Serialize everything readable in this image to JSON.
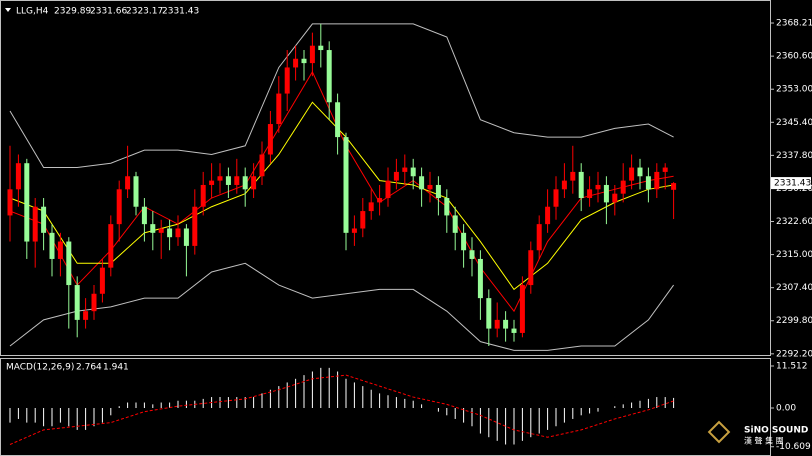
{
  "chart_data": [
    {
      "type": "candlestick",
      "title": "LLG,H4",
      "up_color": "#ff0000",
      "down_color": "#98fb98",
      "candles": [
        [
          2324,
          2340,
          2318,
          2330
        ],
        [
          2330,
          2338,
          2326,
          2336
        ],
        [
          2336,
          2337,
          2314,
          2318
        ],
        [
          2318,
          2328,
          2312,
          2326
        ],
        [
          2326,
          2328,
          2316,
          2320
        ],
        [
          2320,
          2322,
          2310,
          2314
        ],
        [
          2314,
          2320,
          2310,
          2318
        ],
        [
          2318,
          2319,
          2298,
          2308
        ],
        [
          2308,
          2310,
          2296,
          2300
        ],
        [
          2300,
          2305,
          2298,
          2302
        ],
        [
          2302,
          2308,
          2300,
          2306
        ],
        [
          2306,
          2314,
          2304,
          2312
        ],
        [
          2312,
          2324,
          2310,
          2322
        ],
        [
          2322,
          2332,
          2318,
          2330
        ],
        [
          2330,
          2340,
          2328,
          2333
        ],
        [
          2333,
          2334,
          2324,
          2326
        ],
        [
          2326,
          2328,
          2318,
          2322
        ],
        [
          2322,
          2325,
          2316,
          2320
        ],
        [
          2320,
          2323,
          2314,
          2321
        ],
        [
          2321,
          2323,
          2316,
          2319
        ],
        [
          2319,
          2324,
          2317,
          2321
        ],
        [
          2321,
          2322,
          2310,
          2317
        ],
        [
          2317,
          2330,
          2315,
          2326
        ],
        [
          2326,
          2334,
          2324,
          2331
        ],
        [
          2331,
          2336,
          2328,
          2332
        ],
        [
          2332,
          2336,
          2329,
          2333
        ],
        [
          2333,
          2335,
          2328,
          2331
        ],
        [
          2331,
          2337,
          2329,
          2333
        ],
        [
          2333,
          2335,
          2326,
          2330
        ],
        [
          2330,
          2336,
          2328,
          2333
        ],
        [
          2333,
          2341,
          2331,
          2338
        ],
        [
          2338,
          2348,
          2336,
          2345
        ],
        [
          2345,
          2356,
          2343,
          2352
        ],
        [
          2352,
          2362,
          2348,
          2358
        ],
        [
          2358,
          2363,
          2355,
          2360
        ],
        [
          2360,
          2362,
          2355,
          2359
        ],
        [
          2359,
          2366,
          2356,
          2363
        ],
        [
          2363,
          2368,
          2358,
          2362
        ],
        [
          2362,
          2364,
          2346,
          2350
        ],
        [
          2350,
          2352,
          2338,
          2342
        ],
        [
          2342,
          2343,
          2316,
          2320
        ],
        [
          2320,
          2324,
          2317,
          2321
        ],
        [
          2321,
          2328,
          2319,
          2325
        ],
        [
          2325,
          2330,
          2323,
          2327
        ],
        [
          2327,
          2331,
          2324,
          2328
        ],
        [
          2328,
          2335,
          2326,
          2332
        ],
        [
          2332,
          2337,
          2330,
          2334
        ],
        [
          2334,
          2338,
          2331,
          2335
        ],
        [
          2335,
          2337,
          2330,
          2333
        ],
        [
          2333,
          2335,
          2326,
          2330
        ],
        [
          2330,
          2334,
          2327,
          2331
        ],
        [
          2331,
          2333,
          2324,
          2328
        ],
        [
          2328,
          2330,
          2320,
          2324
        ],
        [
          2324,
          2326,
          2316,
          2320
        ],
        [
          2320,
          2322,
          2312,
          2316
        ],
        [
          2316,
          2319,
          2310,
          2314
        ],
        [
          2314,
          2316,
          2300,
          2305
        ],
        [
          2305,
          2307,
          2294,
          2298
        ],
        [
          2298,
          2304,
          2296,
          2300
        ],
        [
          2300,
          2302,
          2295,
          2298
        ],
        [
          2298,
          2300,
          2295,
          2297
        ],
        [
          2297,
          2310,
          2296,
          2308
        ],
        [
          2308,
          2318,
          2306,
          2316
        ],
        [
          2316,
          2324,
          2314,
          2322
        ],
        [
          2322,
          2330,
          2320,
          2326
        ],
        [
          2326,
          2333,
          2323,
          2330
        ],
        [
          2330,
          2336,
          2328,
          2332
        ],
        [
          2332,
          2340,
          2329,
          2334
        ],
        [
          2334,
          2336,
          2325,
          2328
        ],
        [
          2328,
          2333,
          2326,
          2330
        ],
        [
          2330,
          2334,
          2327,
          2331
        ],
        [
          2331,
          2333,
          2322,
          2327
        ],
        [
          2327,
          2331,
          2324,
          2329
        ],
        [
          2329,
          2336,
          2327,
          2332
        ],
        [
          2332,
          2338,
          2330,
          2335
        ],
        [
          2335,
          2337,
          2330,
          2333
        ],
        [
          2333,
          2335,
          2327,
          2330
        ],
        [
          2330,
          2336,
          2328,
          2334
        ],
        [
          2334,
          2336,
          2330,
          2335
        ],
        [
          2329.89,
          2331.66,
          2323.17,
          2331.43
        ]
      ],
      "overlays": [
        {
          "color": "#c0c0c0",
          "x": [
            0,
            4,
            8,
            12,
            16,
            20,
            24,
            28,
            32,
            36,
            40,
            44,
            48,
            52,
            56,
            60,
            64,
            68,
            72,
            76,
            79
          ],
          "values": [
            2348,
            2335,
            2335,
            2336,
            2339,
            2339,
            2338,
            2340,
            2358,
            2368,
            2368,
            2368,
            2368,
            2365,
            2346,
            2343,
            2342,
            2342,
            2344,
            2345,
            2342
          ]
        },
        {
          "color": "#c0c0c0",
          "x": [
            0,
            4,
            8,
            12,
            16,
            20,
            24,
            28,
            32,
            36,
            40,
            44,
            48,
            52,
            56,
            60,
            64,
            68,
            72,
            76,
            79
          ],
          "values": [
            2294,
            2300,
            2302,
            2303,
            2305,
            2305,
            2311,
            2313,
            2308,
            2305,
            2306,
            2307,
            2307,
            2302,
            2295,
            2293,
            2293,
            2294,
            2294,
            2300,
            2308
          ]
        },
        {
          "color": "#ff0000",
          "x": [
            0,
            4,
            8,
            12,
            16,
            20,
            24,
            28,
            32,
            36,
            40,
            44,
            48,
            52,
            56,
            60,
            64,
            68,
            72,
            76,
            79
          ],
          "values": [
            2325,
            2322,
            2308,
            2316,
            2326,
            2322,
            2328,
            2331,
            2344,
            2357,
            2340,
            2327,
            2332,
            2326,
            2312,
            2302,
            2318,
            2328,
            2330,
            2332,
            2333
          ]
        },
        {
          "color": "#ffff00",
          "x": [
            0,
            4,
            8,
            12,
            16,
            20,
            24,
            28,
            32,
            36,
            40,
            44,
            48,
            52,
            56,
            60,
            64,
            68,
            72,
            76,
            79
          ],
          "values": [
            2328,
            2325,
            2313,
            2313,
            2320,
            2322,
            2326,
            2329,
            2338,
            2350,
            2342,
            2332,
            2331,
            2328,
            2318,
            2307,
            2313,
            2323,
            2327,
            2330,
            2331
          ]
        }
      ],
      "ylim": [
        2291.7,
        2373.5
      ],
      "yticks": [
        {
          "value": 2368.21,
          "label": "2368.21"
        },
        {
          "value": 2360.6,
          "label": "2360.60"
        },
        {
          "value": 2353,
          "label": "2353.00"
        },
        {
          "value": 2345.4,
          "label": "2345.40"
        },
        {
          "value": 2337.8,
          "label": "2337.80"
        },
        {
          "value": 2330.2,
          "label": "2330.20"
        },
        {
          "value": 2322.6,
          "label": "2322.60"
        },
        {
          "value": 2315,
          "label": "2315.00"
        },
        {
          "value": 2307.4,
          "label": "2307.40"
        },
        {
          "value": 2299.8,
          "label": "2299.80"
        },
        {
          "value": 2292.2,
          "label": "2292.20"
        }
      ]
    },
    {
      "type": "macd",
      "title": "MACD(12,26,9)",
      "histogram_color": "#ffffff",
      "signal_color": "#ff0000",
      "histogram": [
        -4,
        -3,
        -4,
        -4,
        -5,
        -5,
        -4,
        -5,
        -6,
        -6,
        -5,
        -4,
        -2,
        0.5,
        1.5,
        1.5,
        1.5,
        1,
        1.5,
        1.5,
        2,
        2,
        2,
        2.5,
        3,
        3,
        3,
        3,
        3,
        3,
        4,
        5,
        6,
        7,
        8,
        9,
        10,
        11,
        11,
        10,
        8,
        7,
        6,
        5,
        4,
        3.5,
        3,
        2.5,
        2,
        1,
        0,
        -1,
        -2,
        -3,
        -4,
        -5,
        -7,
        -8,
        -9,
        -10,
        -10,
        -9,
        -8,
        -7,
        -6,
        -5,
        -4,
        -3,
        -2,
        -1.5,
        -1,
        0,
        0.5,
        1,
        1.5,
        2,
        2.5,
        3,
        3,
        2.764
      ],
      "signal": {
        "x": [
          0,
          4,
          8,
          12,
          16,
          20,
          24,
          28,
          32,
          36,
          40,
          44,
          48,
          52,
          56,
          60,
          64,
          68,
          72,
          76,
          79
        ],
        "values": [
          -10,
          -6,
          -5,
          -4,
          -1,
          0.5,
          1.5,
          2.5,
          5,
          8,
          9,
          6,
          3,
          1,
          -2,
          -6,
          -8,
          -6,
          -3,
          -0.5,
          1.941
        ]
      },
      "ylim": [
        -13.15,
        13.7
      ],
      "yticks": [
        11.512,
        {
          "value": 0,
          "label": "0.00"
        },
        -10.609
      ]
    }
  ],
  "logo": {
    "text": "SiNO SOUND",
    "subtitle": "漢 聲 集 團"
  }
}
